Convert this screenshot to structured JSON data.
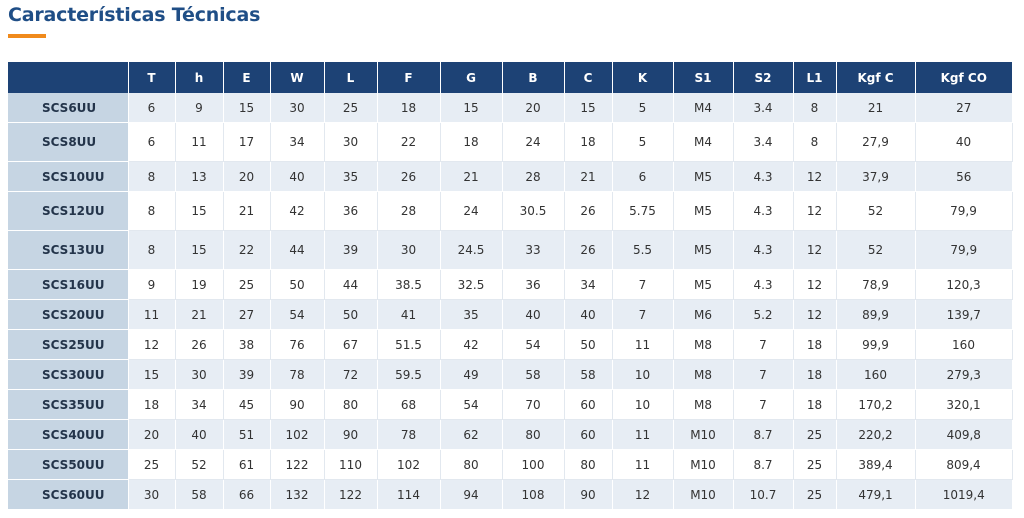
{
  "page": {
    "title": "Características Técnicas"
  },
  "table": {
    "headers": [
      "",
      "T",
      "h",
      "E",
      "W",
      "L",
      "F",
      "G",
      "B",
      "C",
      "K",
      "S1",
      "S2",
      "L1",
      "Kgf C",
      "Kgf CO"
    ],
    "rows": [
      [
        "SCS6UU",
        "6",
        "9",
        "15",
        "30",
        "25",
        "18",
        "15",
        "20",
        "15",
        "5",
        "M4",
        "3.4",
        "8",
        "21",
        "27"
      ],
      [
        "SCS8UU",
        "6",
        "11",
        "17",
        "34",
        "30",
        "22",
        "18",
        "24",
        "18",
        "5",
        "M4",
        "3.4",
        "8",
        "27,9",
        "40"
      ],
      [
        "SCS10UU",
        "8",
        "13",
        "20",
        "40",
        "35",
        "26",
        "21",
        "28",
        "21",
        "6",
        "M5",
        "4.3",
        "12",
        "37,9",
        "56"
      ],
      [
        "SCS12UU",
        "8",
        "15",
        "21",
        "42",
        "36",
        "28",
        "24",
        "30.5",
        "26",
        "5.75",
        "M5",
        "4.3",
        "12",
        "52",
        "79,9"
      ],
      [
        "SCS13UU",
        "8",
        "15",
        "22",
        "44",
        "39",
        "30",
        "24.5",
        "33",
        "26",
        "5.5",
        "M5",
        "4.3",
        "12",
        "52",
        "79,9"
      ],
      [
        "SCS16UU",
        "9",
        "19",
        "25",
        "50",
        "44",
        "38.5",
        "32.5",
        "36",
        "34",
        "7",
        "M5",
        "4.3",
        "12",
        "78,9",
        "120,3"
      ],
      [
        "SCS20UU",
        "11",
        "21",
        "27",
        "54",
        "50",
        "41",
        "35",
        "40",
        "40",
        "7",
        "M6",
        "5.2",
        "12",
        "89,9",
        "139,7"
      ],
      [
        "SCS25UU",
        "12",
        "26",
        "38",
        "76",
        "67",
        "51.5",
        "42",
        "54",
        "50",
        "11",
        "M8",
        "7",
        "18",
        "99,9",
        "160"
      ],
      [
        "SCS30UU",
        "15",
        "30",
        "39",
        "78",
        "72",
        "59.5",
        "49",
        "58",
        "58",
        "10",
        "M8",
        "7",
        "18",
        "160",
        "279,3"
      ],
      [
        "SCS35UU",
        "18",
        "34",
        "45",
        "90",
        "80",
        "68",
        "54",
        "70",
        "60",
        "10",
        "M8",
        "7",
        "18",
        "170,2",
        "320,1"
      ],
      [
        "SCS40UU",
        "20",
        "40",
        "51",
        "102",
        "90",
        "78",
        "62",
        "80",
        "60",
        "11",
        "M10",
        "8.7",
        "25",
        "220,2",
        "409,8"
      ],
      [
        "SCS50UU",
        "25",
        "52",
        "61",
        "122",
        "110",
        "102",
        "80",
        "100",
        "80",
        "11",
        "M10",
        "8.7",
        "25",
        "389,4",
        "809,4"
      ],
      [
        "SCS60UU",
        "30",
        "58",
        "66",
        "132",
        "122",
        "114",
        "94",
        "108",
        "90",
        "12",
        "M10",
        "10.7",
        "25",
        "479,1",
        "1019,4"
      ]
    ]
  },
  "colors": {
    "title": "#1f4e86",
    "accent_underline": "#f08a1c",
    "header_bg": "#1d4275",
    "model_cell_bg": "#c6d5e3",
    "row_stripe": "#e7edf4"
  }
}
